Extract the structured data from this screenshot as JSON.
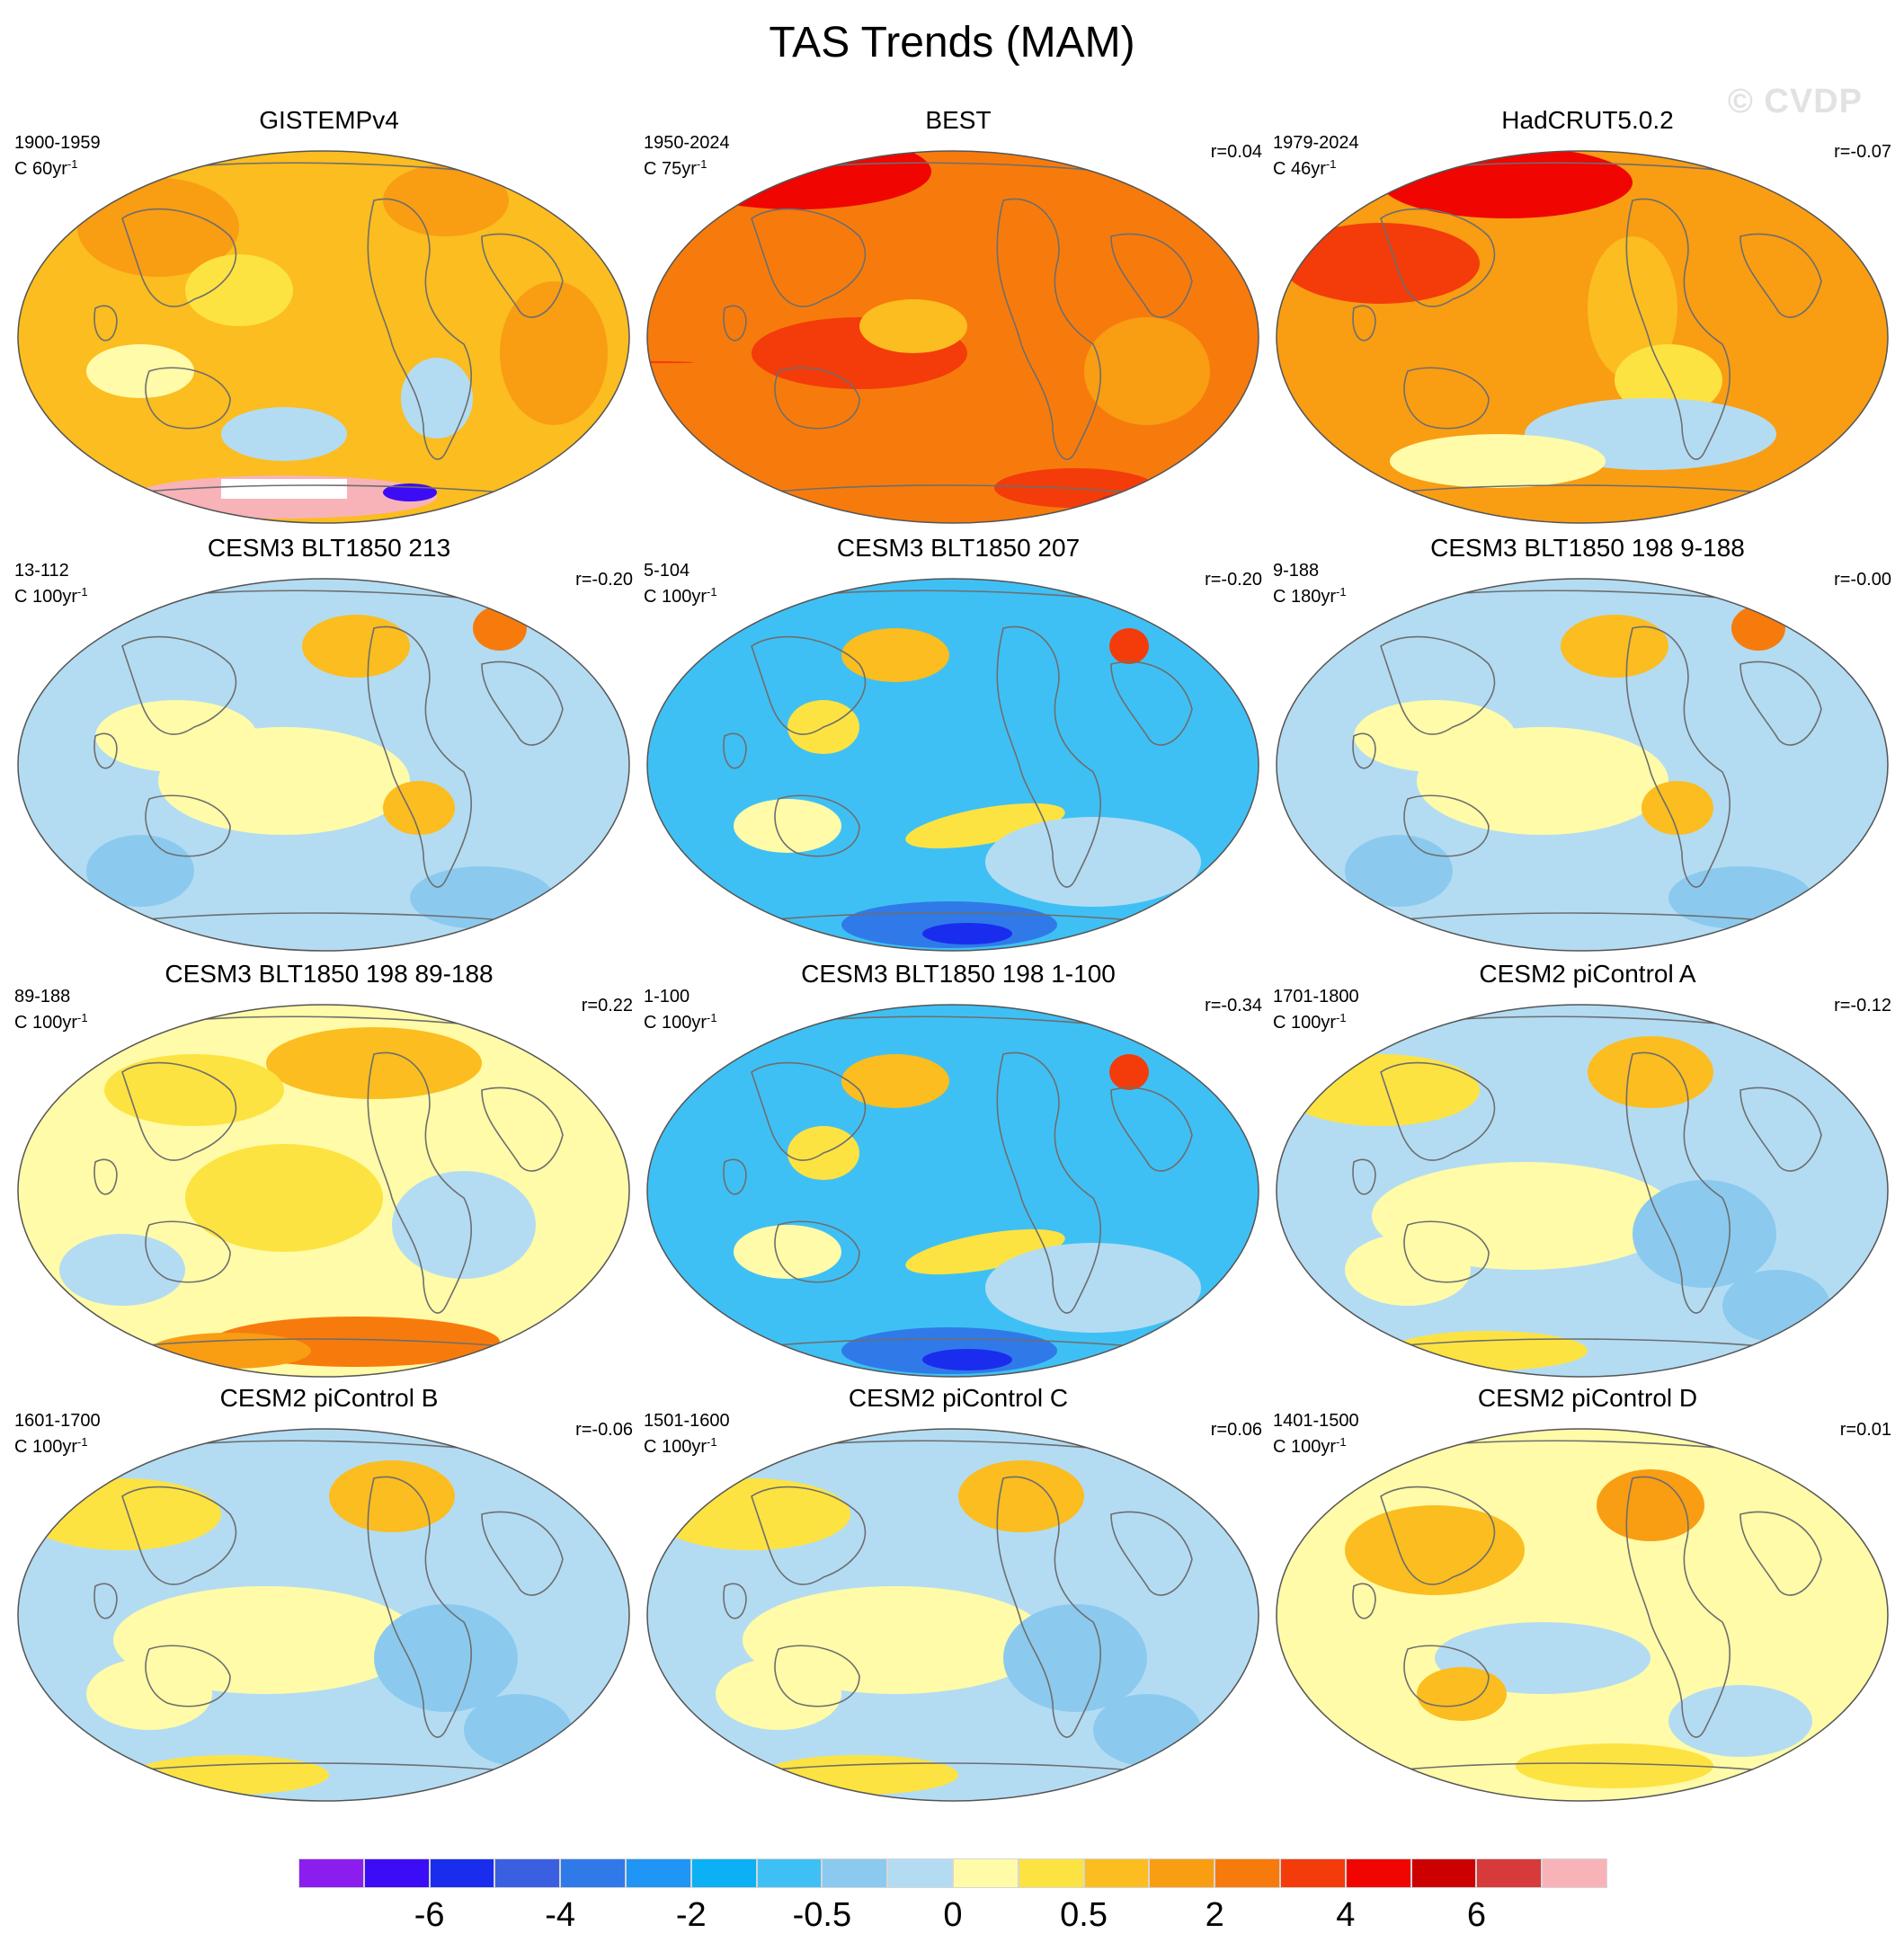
{
  "title": "TAS Trends (MAM)",
  "watermark": "© CVDP",
  "chart_data": [
    {
      "type": "heatmap",
      "title": "GISTEMPv4",
      "period": "1900-1959",
      "units": "C 60yr",
      "units_exp": "-1",
      "r": "",
      "pattern": "obs_warm",
      "has_missing": true
    },
    {
      "type": "heatmap",
      "title": "BEST",
      "period": "1950-2024",
      "units": "C 75yr",
      "units_exp": "-1",
      "r": "r=0.04",
      "pattern": "strong_warm"
    },
    {
      "type": "heatmap",
      "title": "HadCRUT5.0.2",
      "period": "1979-2024",
      "units": "C 46yr",
      "units_exp": "-1",
      "r": "r=-0.07",
      "pattern": "recent_warm"
    },
    {
      "type": "heatmap",
      "title": "CESM3 BLT1850 213",
      "period": "13-112",
      "units": "C 100yr",
      "units_exp": "-1",
      "r": "r=-0.20",
      "pattern": "mixed_cool"
    },
    {
      "type": "heatmap",
      "title": "CESM3 BLT1850 207",
      "period": "5-104",
      "units": "C 100yr",
      "units_exp": "-1",
      "r": "r=-0.20",
      "pattern": "strong_cool"
    },
    {
      "type": "heatmap",
      "title": "CESM3 BLT1850 198 9-188",
      "period": "9-188",
      "units": "C 180yr",
      "units_exp": "-1",
      "r": "r=-0.00",
      "pattern": "mixed_cool"
    },
    {
      "type": "heatmap",
      "title": "CESM3 BLT1850 198 89-188",
      "period": "89-188",
      "units": "C 100yr",
      "units_exp": "-1",
      "r": "r=0.22",
      "pattern": "mixed_warm"
    },
    {
      "type": "heatmap",
      "title": "CESM3 BLT1850 198 1-100",
      "period": "1-100",
      "units": "C 100yr",
      "units_exp": "-1",
      "r": "r=-0.34",
      "pattern": "strong_cool"
    },
    {
      "type": "heatmap",
      "title": "CESM2 piControl A",
      "period": "1701-1800",
      "units": "C 100yr",
      "units_exp": "-1",
      "r": "r=-0.12",
      "pattern": "neutral"
    },
    {
      "type": "heatmap",
      "title": "CESM2 piControl B",
      "period": "1601-1700",
      "units": "C 100yr",
      "units_exp": "-1",
      "r": "r=-0.06",
      "pattern": "neutral"
    },
    {
      "type": "heatmap",
      "title": "CESM2 piControl C",
      "period": "1501-1600",
      "units": "C 100yr",
      "units_exp": "-1",
      "r": "r=0.06",
      "pattern": "neutral"
    },
    {
      "type": "heatmap",
      "title": "CESM2 piControl D",
      "period": "1401-1500",
      "units": "C 100yr",
      "units_exp": "-1",
      "r": "r=0.01",
      "pattern": "neutral_warm"
    }
  ],
  "colorbar": {
    "colors": [
      "#8b1eee",
      "#3c0cf6",
      "#1a2dee",
      "#3a5fe0",
      "#2f7ae8",
      "#1f96f5",
      "#0cb0f5",
      "#3fc0f4",
      "#8bcaee",
      "#b3dcf3",
      "#fffba8",
      "#fde341",
      "#fbbd1f",
      "#f99d13",
      "#f77b0c",
      "#f33c0a",
      "#f00500",
      "#cc0000",
      "#d63a3a",
      "#f8b3b8"
    ],
    "ticks": [
      "-6",
      "-4",
      "-2",
      "-0.5",
      "0",
      "0.5",
      "2",
      "4",
      "6"
    ],
    "tick_box_index": [
      2,
      4,
      6,
      8,
      10,
      12,
      14,
      16,
      18
    ]
  }
}
